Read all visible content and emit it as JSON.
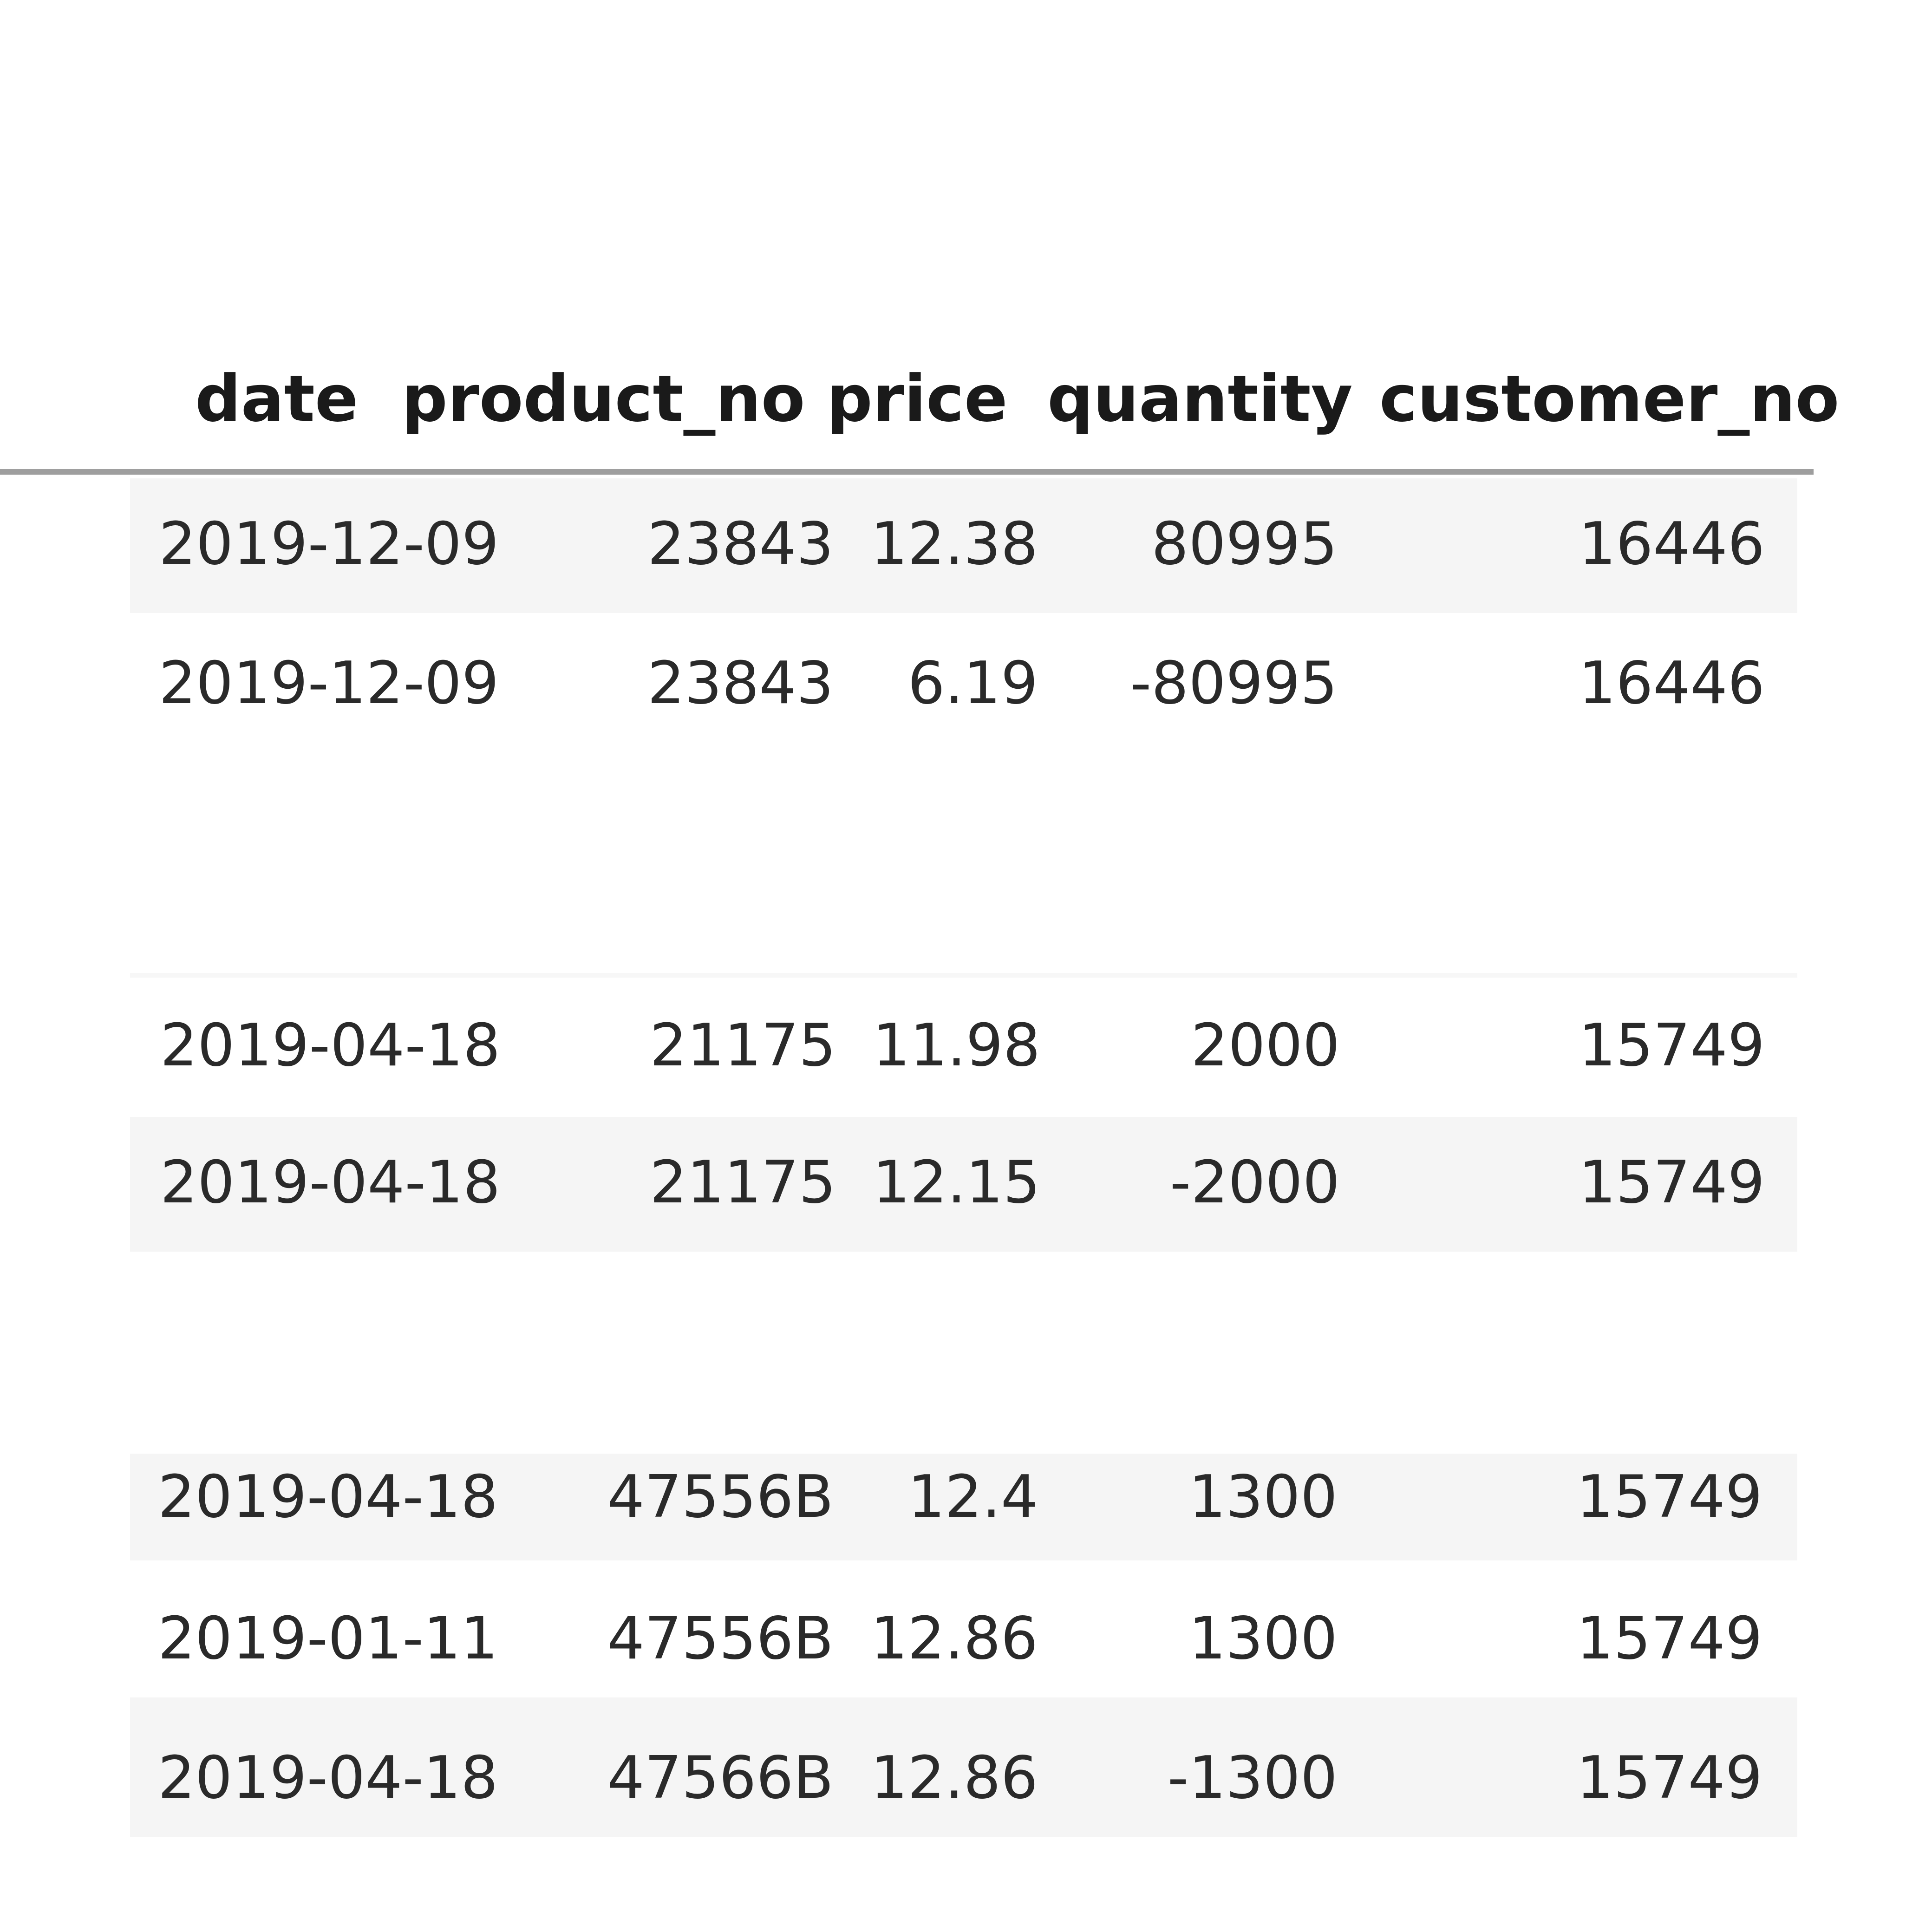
{
  "table": {
    "columns": [
      "date",
      "product_no",
      "price",
      "quantity",
      "customer_no"
    ],
    "rows": [
      [
        "2019-12-09",
        "23843",
        "12.38",
        "80995",
        "16446"
      ],
      [
        "2019-12-09",
        "23843",
        "6.19",
        "-80995",
        "16446"
      ],
      [
        "2019-04-18",
        "21175",
        "11.98",
        "2000",
        "15749"
      ],
      [
        "2019-04-18",
        "21175",
        "12.15",
        "-2000",
        "15749"
      ],
      [
        "2019-04-18",
        "47556B",
        "12.4",
        "1300",
        "15749"
      ],
      [
        "2019-01-11",
        "47556B",
        "12.86",
        "1300",
        "15749"
      ],
      [
        "2019-04-18",
        "47566B",
        "12.86",
        "-1300",
        "15749"
      ]
    ]
  }
}
